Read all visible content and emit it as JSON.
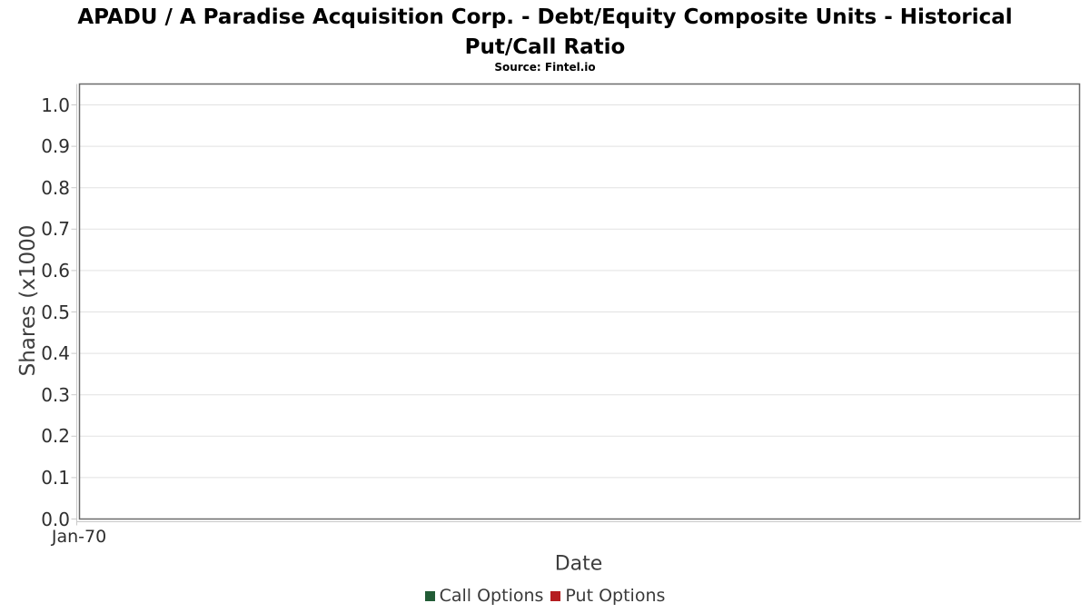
{
  "header": {
    "title_line1": "APADU / A Paradise Acquisition Corp. - Debt/Equity Composite Units - Historical",
    "title_line2": "Put/Call Ratio",
    "source": "Source: Fintel.io"
  },
  "chart_data": {
    "type": "line",
    "title": "APADU / A Paradise Acquisition Corp. - Debt/Equity Composite Units - Historical Put/Call Ratio",
    "subtitle": "Source: Fintel.io",
    "xlabel": "Date",
    "ylabel": "Shares (x1000",
    "x_tick_labels": [
      "Jan-70"
    ],
    "y_tick_labels": [
      "0.0",
      "0.1",
      "0.2",
      "0.3",
      "0.4",
      "0.5",
      "0.6",
      "0.7",
      "0.8",
      "0.9",
      "1.0"
    ],
    "ylim": [
      0.0,
      1.05
    ],
    "grid": "horizontal",
    "legend_position": "bottom",
    "series": [
      {
        "name": "Call Options",
        "color": "#225c36",
        "values": []
      },
      {
        "name": "Put Options",
        "color": "#b51d21",
        "values": []
      }
    ]
  }
}
